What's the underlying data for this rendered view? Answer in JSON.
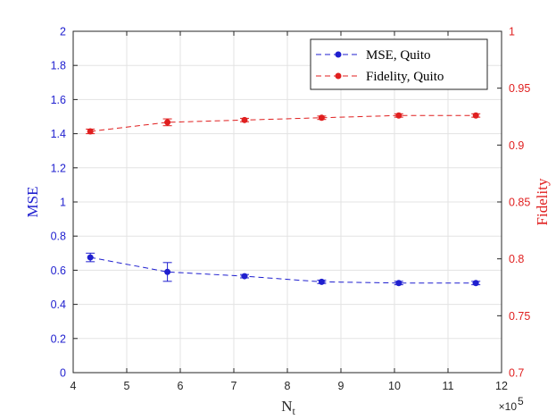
{
  "chart_data": {
    "type": "line",
    "xlabel": "N",
    "xlabel_subscript": "t",
    "x_exponent_label": "×10",
    "x_exponent_power": "5",
    "xlim": [
      4,
      12
    ],
    "x_ticks": [
      "4",
      "5",
      "6",
      "7",
      "8",
      "9",
      "10",
      "11",
      "12"
    ],
    "grid": true,
    "legend_position": "top-right",
    "y_left": {
      "label": "MSE",
      "ylim": [
        0,
        2
      ],
      "ticks": [
        "0",
        "0.2",
        "0.4",
        "0.6",
        "0.8",
        "1",
        "1.2",
        "1.4",
        "1.6",
        "1.8",
        "2"
      ],
      "color": "#1f1fcf"
    },
    "y_right": {
      "label": "Fidelity",
      "ylim": [
        0.7,
        1
      ],
      "ticks": [
        "0.7",
        "0.75",
        "0.8",
        "0.85",
        "0.9",
        "0.95",
        "1"
      ],
      "color": "#e01f1f"
    },
    "series": [
      {
        "name": "MSE, Quito",
        "axis": "left",
        "color": "#1f1fcf",
        "line_style": "dashed",
        "marker": "circle",
        "x": [
          4.32,
          5.76,
          7.2,
          8.64,
          10.08,
          11.52
        ],
        "y": [
          0.675,
          0.59,
          0.565,
          0.532,
          0.525,
          0.525
        ],
        "error": [
          0.025,
          0.055,
          0.01,
          0.01,
          0.01,
          0.01
        ]
      },
      {
        "name": "Fidelity, Quito",
        "axis": "right",
        "color": "#e01f1f",
        "line_style": "dashed",
        "marker": "circle",
        "x": [
          4.32,
          5.76,
          7.2,
          8.64,
          10.08,
          11.52
        ],
        "y": [
          0.912,
          0.92,
          0.922,
          0.924,
          0.926,
          0.926
        ],
        "error": [
          0.002,
          0.003,
          0.0015,
          0.0015,
          0.0015,
          0.0015
        ]
      }
    ]
  }
}
